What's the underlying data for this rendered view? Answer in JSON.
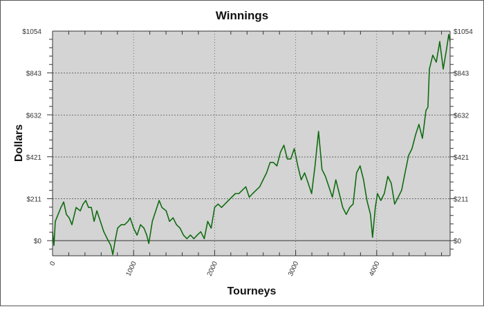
{
  "chart_data": {
    "type": "line",
    "title": "Winnings",
    "xlabel": "Tourneys",
    "ylabel": "Dollars",
    "xlim": [
      0,
      4906
    ],
    "ylim": [
      -76,
      1054
    ],
    "grid": true,
    "background": "#d4d4d4",
    "line_color": "#0f6b10",
    "x_ticks": [
      "0",
      "1000",
      "2000",
      "3000",
      "4000"
    ],
    "y_ticks": [
      "$0",
      "$211",
      "$421",
      "$632",
      "$843",
      "$1054"
    ],
    "y_tick_values": [
      0,
      211,
      421,
      632,
      843,
      1054
    ],
    "x_tick_values": [
      0,
      1000,
      2000,
      3000,
      4000
    ],
    "series": [
      {
        "x": [
          0,
          17,
          34,
          103,
          137,
          171,
          205,
          239,
          291,
          342,
          376,
          410,
          444,
          479,
          513,
          547,
          590,
          632,
          675,
          718,
          744,
          769,
          803,
          846,
          889,
          932,
          957,
          1000,
          1043,
          1085,
          1128,
          1162,
          1188,
          1231,
          1274,
          1316,
          1350,
          1402,
          1444,
          1487,
          1530,
          1573,
          1615,
          1658,
          1701,
          1744,
          1786,
          1829,
          1872,
          1915,
          1957,
          2000,
          2043,
          2085,
          2171,
          2256,
          2299,
          2342,
          2385,
          2427,
          2470,
          2513,
          2556,
          2598,
          2641,
          2684,
          2726,
          2769,
          2812,
          2855,
          2897,
          2940,
          2983,
          3026,
          3068,
          3111,
          3154,
          3197,
          3239,
          3282,
          3325,
          3368,
          3410,
          3453,
          3496,
          3538,
          3581,
          3624,
          3667,
          3709,
          3752,
          3795,
          3838,
          3880,
          3923,
          3949,
          3983,
          4009,
          4051,
          4094,
          4137,
          4179,
          4222,
          4265,
          4308,
          4350,
          4393,
          4436,
          4479,
          4521,
          4564,
          4581,
          4607,
          4632,
          4650,
          4692,
          4735,
          4778,
          4821,
          4863,
          4889,
          4906
        ],
        "y": [
          45,
          -24,
          97,
          167,
          195,
          132,
          115,
          80,
          167,
          150,
          184,
          202,
          167,
          167,
          97,
          150,
          97,
          45,
          10,
          -24,
          -70,
          -7,
          63,
          80,
          80,
          97,
          115,
          63,
          28,
          80,
          63,
          28,
          -14,
          97,
          150,
          202,
          167,
          150,
          97,
          115,
          80,
          63,
          28,
          10,
          28,
          10,
          28,
          45,
          10,
          97,
          63,
          167,
          184,
          167,
          202,
          237,
          237,
          254,
          271,
          219,
          237,
          254,
          271,
          306,
          341,
          393,
          393,
          376,
          445,
          480,
          411,
          411,
          463,
          376,
          306,
          341,
          289,
          237,
          376,
          550,
          358,
          323,
          271,
          219,
          306,
          237,
          167,
          132,
          167,
          184,
          341,
          376,
          306,
          202,
          132,
          17,
          167,
          237,
          202,
          237,
          323,
          289,
          184,
          219,
          254,
          341,
          428,
          463,
          532,
          585,
          515,
          567,
          654,
          672,
          863,
          933,
          898,
          1002,
          863,
          967,
          1037,
          1002
        ]
      }
    ]
  }
}
